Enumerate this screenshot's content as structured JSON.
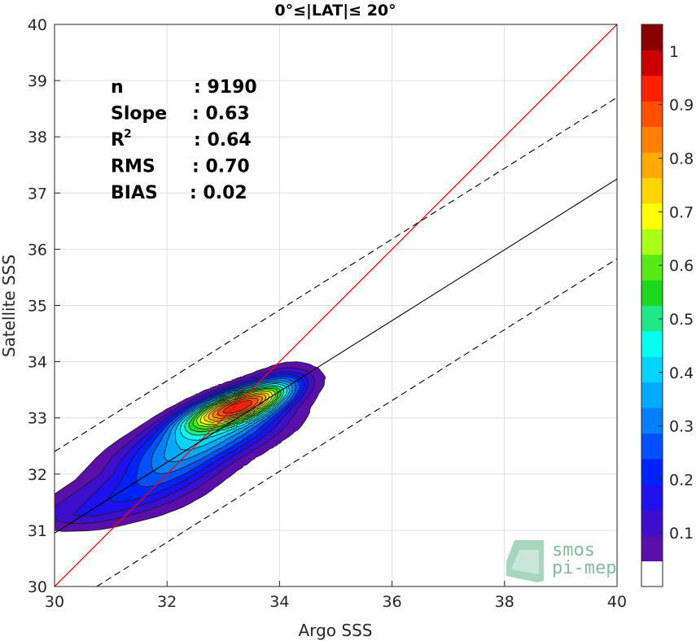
{
  "chart_data": {
    "type": "contour",
    "title": "0°≤|LAT|≤ 20°",
    "xlabel": "Argo SSS",
    "ylabel": "Satellite SSS",
    "xlim": [
      30,
      40
    ],
    "ylim": [
      30,
      40
    ],
    "xticks": [
      "30",
      "32",
      "34",
      "36",
      "38",
      "40"
    ],
    "yticks": [
      "30",
      "31",
      "32",
      "33",
      "34",
      "35",
      "36",
      "37",
      "38",
      "39",
      "40"
    ],
    "grid": true,
    "stats": [
      {
        "label": "n",
        "value": ": 9190"
      },
      {
        "label": "Slope",
        "value": ": 0.63"
      },
      {
        "label": "R",
        "sup": "2",
        "value": ": 0.64"
      },
      {
        "label": "RMS",
        "value": ": 0.70"
      },
      {
        "label": "BIAS",
        "value": ": 0.02"
      }
    ],
    "lines": {
      "identity": {
        "slope": 1,
        "intercept": 0,
        "color": "#ff0000"
      },
      "fit": {
        "x": [
          30,
          40
        ],
        "y": [
          30.95,
          37.25
        ],
        "color": "#000000"
      },
      "fit_upper": {
        "x": [
          30,
          40
        ],
        "y": [
          32.4,
          38.7
        ],
        "style": "dashed"
      },
      "fit_lower": {
        "x": [
          30.75,
          40
        ],
        "y": [
          30,
          35.83
        ],
        "style": "dashed"
      }
    },
    "density_peak": {
      "x": 33.2,
      "y": 33.2
    },
    "contour_levels": [
      0.05,
      0.1,
      0.15,
      0.2,
      0.25,
      0.3,
      0.35,
      0.4,
      0.45,
      0.5,
      0.55,
      0.6,
      0.65,
      0.7,
      0.75,
      0.8,
      0.85,
      0.9,
      0.95,
      1.0
    ],
    "colorbar": {
      "ticks": [
        "0.1",
        "0.2",
        "0.3",
        "0.4",
        "0.5",
        "0.6",
        "0.7",
        "0.8",
        "0.9",
        "1"
      ],
      "colors": [
        "#ffffff",
        "#5a0faa",
        "#3d0fcc",
        "#1f10ee",
        "#0022ff",
        "#0050ff",
        "#0080ff",
        "#00aaff",
        "#00d4ff",
        "#00ffee",
        "#1fe888",
        "#1ed81e",
        "#55ec16",
        "#aaff14",
        "#ffff00",
        "#ffd500",
        "#ffaa00",
        "#ff8000",
        "#ff5000",
        "#ff2000",
        "#cc0000",
        "#880000"
      ]
    }
  },
  "logo": {
    "line1": "smos",
    "line2": "pi-mep"
  }
}
